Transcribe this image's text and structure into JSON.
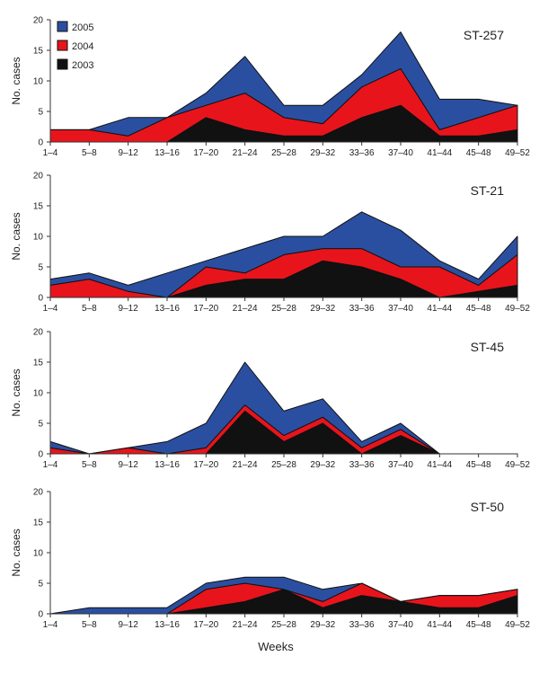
{
  "chart_data": {
    "type": "area",
    "stacked": true,
    "xlabel": "Weeks",
    "ylabel": "No. cases",
    "ylim": [
      0,
      20
    ],
    "yticks": [
      0,
      5,
      10,
      15,
      20
    ],
    "categories": [
      "1–4",
      "5–8",
      "9–12",
      "13–16",
      "17–20",
      "21–24",
      "25–28",
      "29–32",
      "33–36",
      "37–40",
      "41–44",
      "45–48",
      "49–52"
    ],
    "legend": {
      "placement": "top-left of first panel",
      "entries": [
        {
          "name": "2005",
          "color": "#2b4fa0"
        },
        {
          "name": "2004",
          "color": "#e8141c"
        },
        {
          "name": "2003",
          "color": "#111111"
        }
      ]
    },
    "panels": [
      {
        "title": "ST-257",
        "series": [
          {
            "name": "2003",
            "values": [
              0,
              0,
              0,
              0,
              4,
              2,
              1,
              1,
              4,
              6,
              1,
              1,
              2
            ]
          },
          {
            "name": "2004",
            "values": [
              2,
              2,
              1,
              4,
              2,
              6,
              3,
              2,
              5,
              6,
              1,
              3,
              4
            ]
          },
          {
            "name": "2005",
            "values": [
              0,
              0,
              3,
              0,
              2,
              6,
              2,
              3,
              2,
              6,
              5,
              3,
              0
            ]
          }
        ]
      },
      {
        "title": "ST-21",
        "series": [
          {
            "name": "2003",
            "values": [
              0,
              0,
              0,
              0,
              2,
              3,
              3,
              6,
              5,
              3,
              0,
              1,
              2
            ]
          },
          {
            "name": "2004",
            "values": [
              2,
              3,
              1,
              0,
              3,
              1,
              4,
              2,
              3,
              2,
              5,
              1,
              5
            ]
          },
          {
            "name": "2005",
            "values": [
              1,
              1,
              1,
              4,
              1,
              4,
              3,
              2,
              6,
              6,
              1,
              1,
              3
            ]
          }
        ]
      },
      {
        "title": "ST-45",
        "series": [
          {
            "name": "2003",
            "values": [
              0,
              0,
              0,
              0,
              0,
              7,
              2,
              5,
              0,
              3,
              0,
              0,
              0
            ]
          },
          {
            "name": "2004",
            "values": [
              1,
              0,
              1,
              0,
              1,
              1,
              1,
              1,
              1,
              1,
              0,
              0,
              0
            ]
          },
          {
            "name": "2005",
            "values": [
              1,
              0,
              0,
              2,
              4,
              7,
              4,
              3,
              1,
              1,
              0,
              0,
              0
            ]
          }
        ]
      },
      {
        "title": "ST-50",
        "series": [
          {
            "name": "2003",
            "values": [
              0,
              0,
              0,
              0,
              1,
              2,
              4,
              1,
              3,
              2,
              1,
              1,
              3
            ]
          },
          {
            "name": "2004",
            "values": [
              0,
              0,
              0,
              0,
              3,
              3,
              0,
              1,
              2,
              0,
              2,
              2,
              1
            ]
          },
          {
            "name": "2005",
            "values": [
              0,
              1,
              1,
              1,
              1,
              1,
              2,
              2,
              0,
              0,
              0,
              0,
              0
            ]
          }
        ]
      }
    ]
  }
}
